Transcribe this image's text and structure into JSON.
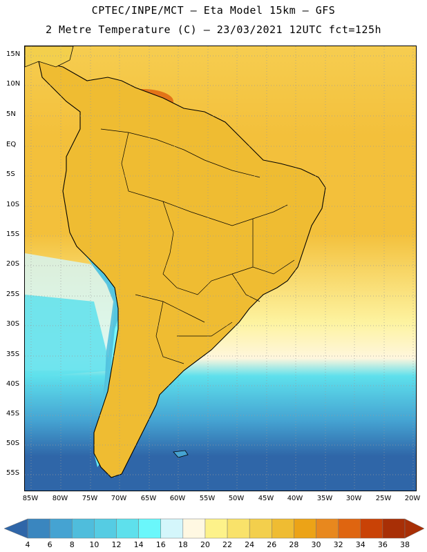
{
  "header": {
    "line1": "CPTEC/INPE/MCT –  Eta Model 15km – GFS",
    "line2": "2 Metre Temperature (C) – 23/03/2021 12UTC fct=125h"
  },
  "axes": {
    "lat_labels": [
      "15N",
      "10N",
      "5N",
      "EQ",
      "5S",
      "10S",
      "15S",
      "20S",
      "25S",
      "30S",
      "35S",
      "40S",
      "45S",
      "50S",
      "55S"
    ],
    "lon_labels": [
      "85W",
      "80W",
      "75W",
      "70W",
      "65W",
      "60W",
      "55W",
      "50W",
      "45W",
      "40W",
      "35W",
      "30W",
      "25W",
      "20W"
    ]
  },
  "colorbar": {
    "labels": [
      "4",
      "6",
      "8",
      "10",
      "12",
      "14",
      "16",
      "18",
      "20",
      "22",
      "24",
      "26",
      "28",
      "30",
      "32",
      "34",
      "36",
      "38"
    ],
    "colors": [
      "#2f66a8",
      "#3a86bf",
      "#45a3d2",
      "#4fbddc",
      "#55cce3",
      "#5ee0ec",
      "#6af7fb",
      "#d4f6fb",
      "#fff8e2",
      "#fdf28a",
      "#f9e26a",
      "#f3cf4c",
      "#efbc32",
      "#eca317",
      "#e8881e",
      "#df6510",
      "#c94206",
      "#a82f06"
    ],
    "low_arrow": "#2f66a8",
    "high_arrow": "#a82f06"
  },
  "map": {
    "ocean_colors": {
      "north": "#f6cd50",
      "equatorial": "#f3c03b",
      "subtropical": "#fdf3a0",
      "transition": "#fff6dd",
      "cool": "#5ee0ec",
      "cold": "#45a3d2",
      "coldest": "#2f66a8"
    },
    "land_colors": {
      "lowland": "#efbc32",
      "hot": "#df6510",
      "hottest": "#c94206",
      "andes_mid": "#fdf28a",
      "andes_cold": "#6af7fb",
      "andes_coldest": "#4fbddc",
      "patagonia": "#55cce3"
    }
  }
}
